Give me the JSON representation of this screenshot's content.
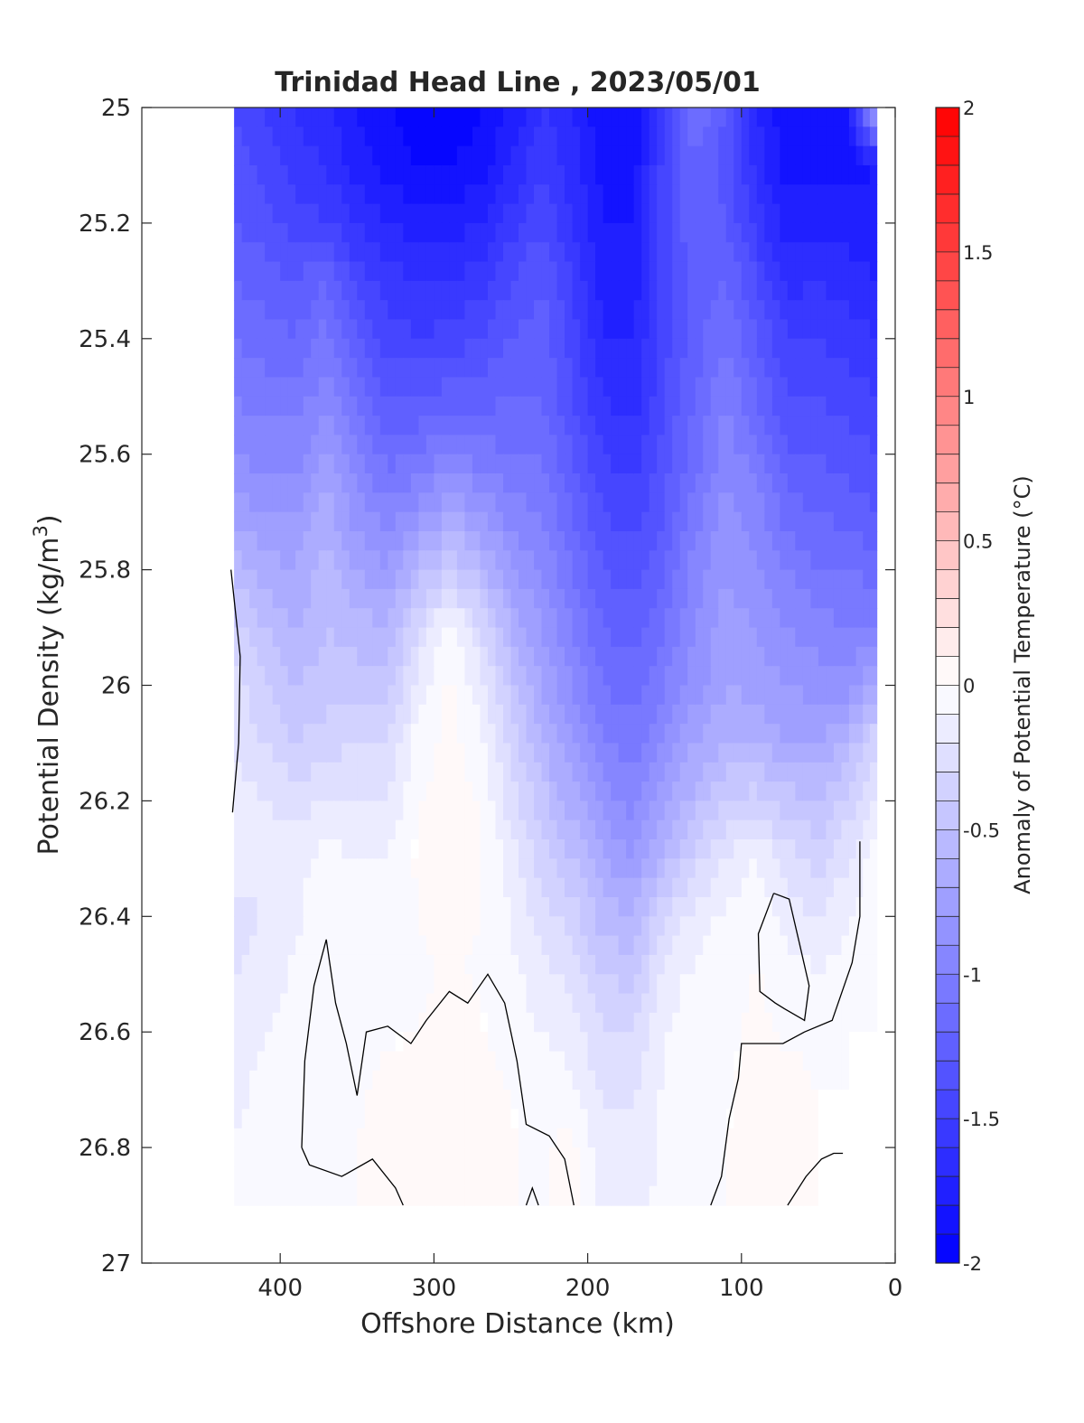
{
  "chart_data": {
    "type": "heatmap",
    "subtype": "filled-contour",
    "title": "Trinidad Head Line , 2023/05/01",
    "xlabel": "Offshore Distance (km)",
    "ylabel": "Potential Density (kg/m3)",
    "ylabel_main": "Potential Density (kg/m",
    "ylabel_sup": "3",
    "ylabel_close": ")",
    "x_axis_reversed": true,
    "y_axis_reversed": true,
    "xlim": [
      490,
      0
    ],
    "ylim": [
      25,
      27
    ],
    "x_ticks": [
      400,
      300,
      200,
      100,
      0
    ],
    "x_tick_labels": [
      "400",
      "300",
      "200",
      "100",
      "0"
    ],
    "y_ticks": [
      25,
      25.2,
      25.4,
      25.6,
      25.8,
      26,
      26.2,
      26.4,
      26.6,
      26.8,
      27
    ],
    "y_tick_labels": [
      "25",
      "25.2",
      "25.4",
      "25.6",
      "25.8",
      "26",
      "26.2",
      "26.4",
      "26.6",
      "26.8",
      "27"
    ],
    "grid": false,
    "colorbar": {
      "label": "Anomaly of Potential Temperature (°C)",
      "range": [
        -2,
        2
      ],
      "step": 0.1,
      "ticks": [
        2,
        1.5,
        1,
        0.5,
        0,
        -0.5,
        -1,
        -1.5,
        -2
      ],
      "tick_labels": [
        "2",
        "1.5",
        "1",
        "0.5",
        "0",
        "-0.5",
        "-1",
        "-1.5",
        "-2"
      ],
      "cold_color": "#0000ff",
      "warm_color": "#ff0000",
      "neutral_color": "#ffffff"
    },
    "x": [
      430,
      410,
      390,
      370,
      350,
      330,
      310,
      290,
      270,
      250,
      230,
      210,
      190,
      170,
      150,
      130,
      110,
      90,
      70,
      50,
      30,
      12
    ],
    "y": [
      25.0,
      25.1,
      25.2,
      25.3,
      25.4,
      25.5,
      25.6,
      25.7,
      25.8,
      25.9,
      26.0,
      26.1,
      26.2,
      26.3,
      26.4,
      26.5,
      26.6,
      26.7,
      26.8,
      26.9
    ],
    "z": [
      [
        -1.4,
        -1.5,
        -1.6,
        -1.7,
        -1.8,
        -1.9,
        -1.95,
        -2.0,
        -1.9,
        -1.8,
        -1.6,
        -1.7,
        -1.9,
        -1.85,
        -1.5,
        -1.1,
        -1.3,
        -1.7,
        -1.9,
        -1.9,
        -1.8,
        -0.6
      ],
      [
        -1.35,
        -1.45,
        -1.55,
        -1.6,
        -1.75,
        -1.85,
        -1.9,
        -1.9,
        -1.85,
        -1.7,
        -1.5,
        -1.65,
        -1.85,
        -1.85,
        -1.45,
        -1.2,
        -1.35,
        -1.65,
        -1.85,
        -1.85,
        -1.85,
        -1.8
      ],
      [
        -1.3,
        -1.35,
        -1.45,
        -1.5,
        -1.6,
        -1.7,
        -1.75,
        -1.75,
        -1.7,
        -1.55,
        -1.4,
        -1.6,
        -1.8,
        -1.8,
        -1.45,
        -1.2,
        -1.3,
        -1.55,
        -1.75,
        -1.75,
        -1.75,
        -1.75
      ],
      [
        -1.2,
        -1.25,
        -1.3,
        -1.2,
        -1.45,
        -1.55,
        -1.6,
        -1.6,
        -1.55,
        -1.4,
        -1.3,
        -1.5,
        -1.75,
        -1.75,
        -1.45,
        -1.25,
        -1.2,
        -1.4,
        -1.65,
        -1.6,
        -1.65,
        -1.7
      ],
      [
        -1.1,
        -1.15,
        -1.2,
        -1.05,
        -1.3,
        -1.45,
        -1.5,
        -1.45,
        -1.4,
        -1.3,
        -1.25,
        -1.45,
        -1.7,
        -1.7,
        -1.45,
        -1.25,
        -1.1,
        -1.3,
        -1.5,
        -1.5,
        -1.55,
        -1.6
      ],
      [
        -1.0,
        -1.05,
        -1.05,
        -0.95,
        -1.15,
        -1.3,
        -1.3,
        -1.25,
        -1.25,
        -1.2,
        -1.2,
        -1.4,
        -1.6,
        -1.65,
        -1.4,
        -1.2,
        -1.0,
        -1.2,
        -1.4,
        -1.4,
        -1.45,
        -1.5
      ],
      [
        -0.9,
        -0.95,
        -0.95,
        -0.8,
        -1.0,
        -1.15,
        -1.1,
        -1.0,
        -1.05,
        -1.1,
        -1.1,
        -1.3,
        -1.5,
        -1.55,
        -1.35,
        -1.15,
        -0.95,
        -1.05,
        -1.3,
        -1.3,
        -1.35,
        -1.4
      ],
      [
        -0.75,
        -0.8,
        -0.8,
        -0.65,
        -0.85,
        -0.95,
        -0.85,
        -0.7,
        -0.8,
        -0.95,
        -1.0,
        -1.2,
        -1.4,
        -1.45,
        -1.3,
        -1.05,
        -0.85,
        -0.95,
        -1.15,
        -1.2,
        -1.25,
        -1.3
      ],
      [
        -0.55,
        -0.65,
        -0.7,
        -0.55,
        -0.7,
        -0.8,
        -0.55,
        -0.4,
        -0.55,
        -0.8,
        -0.9,
        -1.1,
        -1.3,
        -1.35,
        -1.2,
        -0.95,
        -0.8,
        -0.9,
        -1.0,
        -1.1,
        -1.1,
        -1.15
      ],
      [
        -0.35,
        -0.5,
        -0.6,
        -0.5,
        -0.55,
        -0.6,
        -0.3,
        -0.05,
        -0.3,
        -0.6,
        -0.8,
        -1.0,
        -1.2,
        -1.25,
        -1.1,
        -0.9,
        -0.75,
        -0.8,
        -0.9,
        -0.95,
        -1.0,
        -1.0
      ],
      [
        -0.25,
        -0.4,
        -0.5,
        -0.45,
        -0.45,
        -0.45,
        -0.15,
        0.02,
        -0.15,
        -0.45,
        -0.7,
        -0.9,
        -1.1,
        -1.15,
        -1.0,
        -0.85,
        -0.7,
        -0.75,
        -0.8,
        -0.85,
        -0.85,
        -0.7
      ],
      [
        -0.2,
        -0.3,
        -0.4,
        -0.35,
        -0.3,
        -0.3,
        -0.05,
        0.03,
        -0.05,
        -0.35,
        -0.6,
        -0.8,
        -1.0,
        -1.05,
        -0.9,
        -0.7,
        -0.6,
        -0.6,
        -0.7,
        -0.7,
        -0.55,
        -0.3
      ],
      [
        -0.15,
        -0.2,
        -0.25,
        -0.2,
        -0.2,
        -0.2,
        0.0,
        0.03,
        0.0,
        -0.25,
        -0.45,
        -0.65,
        -0.85,
        -0.95,
        -0.75,
        -0.55,
        -0.4,
        -0.35,
        -0.45,
        -0.5,
        -0.35,
        -0.15
      ],
      [
        -0.1,
        -0.15,
        -0.15,
        -0.05,
        -0.1,
        -0.1,
        0.02,
        0.03,
        0.02,
        -0.15,
        -0.35,
        -0.5,
        -0.7,
        -0.8,
        -0.55,
        -0.35,
        -0.2,
        -0.1,
        -0.25,
        -0.35,
        -0.2,
        -0.05
      ],
      [
        -0.25,
        -0.2,
        -0.12,
        -0.03,
        -0.05,
        -0.05,
        0.0,
        0.02,
        0.0,
        -0.1,
        -0.25,
        -0.35,
        -0.55,
        -0.6,
        -0.3,
        -0.15,
        -0.08,
        -0.02,
        -0.15,
        -0.2,
        -0.1,
        0.0
      ],
      [
        -0.2,
        -0.15,
        -0.08,
        -0.02,
        -0.03,
        -0.03,
        -0.01,
        0.01,
        -0.01,
        -0.08,
        -0.15,
        -0.25,
        -0.4,
        -0.45,
        -0.15,
        -0.08,
        -0.04,
        0.01,
        -0.05,
        -0.1,
        -0.05,
        0.0
      ],
      [
        -0.15,
        -0.1,
        -0.06,
        -0.03,
        -0.02,
        -0.01,
        0.0,
        0.02,
        0.01,
        -0.04,
        -0.1,
        -0.15,
        -0.3,
        -0.3,
        -0.1,
        -0.05,
        -0.02,
        0.02,
        -0.02,
        -0.03,
        0.0,
        0.0
      ],
      [
        -0.12,
        -0.08,
        -0.05,
        -0.02,
        -0.01,
        0.02,
        0.05,
        0.06,
        0.05,
        0.0,
        -0.05,
        -0.08,
        -0.22,
        -0.22,
        -0.08,
        -0.04,
        -0.01,
        0.03,
        0.04,
        0.0,
        0.0,
        0.0
      ],
      [
        -0.1,
        -0.07,
        -0.04,
        -0.01,
        0.0,
        0.03,
        0.06,
        0.07,
        0.06,
        0.01,
        -0.02,
        0.04,
        -0.18,
        -0.18,
        -0.07,
        -0.03,
        0.0,
        0.04,
        0.05,
        0.0,
        0.0,
        0.0
      ],
      [
        -0.1,
        -0.06,
        -0.03,
        -0.01,
        0.0,
        0.02,
        0.05,
        0.06,
        0.05,
        0.01,
        -0.02,
        0.04,
        -0.16,
        -0.16,
        -0.06,
        -0.03,
        0.0,
        0.04,
        0.04,
        0.0,
        0.0,
        0.0
      ]
    ],
    "zero_contour_lines": [
      [
        [
          432,
          25.8
        ],
        [
          426,
          25.95
        ],
        [
          427,
          26.1
        ],
        [
          431,
          26.22
        ]
      ],
      [
        [
          386,
          26.8
        ],
        [
          384,
          26.65
        ],
        [
          378,
          26.52
        ],
        [
          370,
          26.44
        ],
        [
          364,
          26.55
        ],
        [
          357,
          26.62
        ],
        [
          350,
          26.71
        ],
        [
          344,
          26.6
        ],
        [
          330,
          26.59
        ],
        [
          315,
          26.62
        ],
        [
          305,
          26.58
        ],
        [
          290,
          26.53
        ],
        [
          278,
          26.55
        ],
        [
          265,
          26.5
        ],
        [
          254,
          26.55
        ],
        [
          246,
          26.65
        ],
        [
          240,
          26.76
        ],
        [
          225,
          26.78
        ],
        [
          215,
          26.82
        ],
        [
          209,
          26.9
        ]
      ],
      [
        [
          386,
          26.8
        ],
        [
          381,
          26.83
        ],
        [
          360,
          26.85
        ],
        [
          340,
          26.82
        ],
        [
          325,
          26.87
        ],
        [
          320,
          26.9
        ]
      ],
      [
        [
          240,
          26.9
        ],
        [
          236,
          26.87
        ],
        [
          232,
          26.9
        ]
      ],
      [
        [
          120,
          26.9
        ],
        [
          113,
          26.85
        ],
        [
          108,
          26.75
        ],
        [
          102,
          26.68
        ],
        [
          100,
          26.62
        ],
        [
          86,
          26.62
        ],
        [
          73,
          26.62
        ],
        [
          59,
          26.6
        ],
        [
          41,
          26.58
        ],
        [
          28,
          26.48
        ],
        [
          23,
          26.4
        ],
        [
          23,
          26.27
        ]
      ],
      [
        [
          79,
          26.36
        ],
        [
          69,
          26.37
        ],
        [
          62,
          26.45
        ],
        [
          56,
          26.52
        ],
        [
          59,
          26.58
        ],
        [
          72,
          26.56
        ],
        [
          78,
          26.55
        ],
        [
          88,
          26.53
        ],
        [
          89,
          26.43
        ],
        [
          79,
          26.36
        ]
      ],
      [
        [
          70,
          26.9
        ],
        [
          58,
          26.85
        ],
        [
          48,
          26.82
        ],
        [
          40,
          26.81
        ],
        [
          34,
          26.81
        ]
      ]
    ]
  }
}
